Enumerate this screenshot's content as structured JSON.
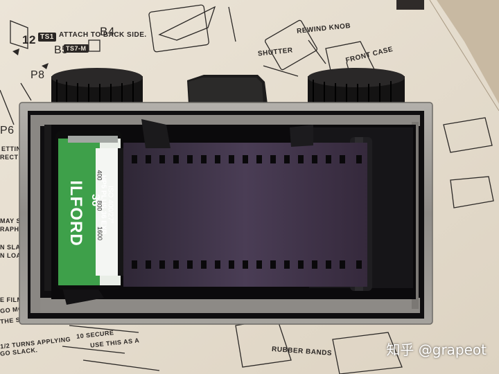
{
  "photo": {
    "subject": "Film camera kit with Ilford HP5 film loaded",
    "colors": {
      "paper": "#e9e1d3",
      "table": "#cfc2ad",
      "camera_silver": "#9d9a95",
      "camera_black": "#121113",
      "film": "#3c3245",
      "cartridge_green": "#3ea04a"
    }
  },
  "instructions": {
    "step_12": "12",
    "step_12_tag": "TS1",
    "step_12_text": "ATTACH TO BACK SIDE.",
    "part_b5": "B5",
    "part_b5_tag": "TS7-M",
    "part_b4": "B4",
    "part_p8": "P8",
    "part_p6": "P6",
    "label_shutter": "SHUTTER",
    "label_rewind_knob": "REWIND KNOB",
    "label_front_case": "FRONT CASE",
    "label_rubber_bands": "RUBBER BANDS",
    "left_snippets": [
      "ETTING W",
      "RECT SU",
      "MAY SC",
      "RAPHS.",
      "N SLACK",
      "N LOADI",
      "E FILM M",
      "GO MORE EASIL",
      "THE SLOT OF THE SPOOL",
      "1/2 TURNS APPLYING",
      "GO SLACK."
    ],
    "bottom_snippets": [
      "10  SECURE",
      "USE THIS AS A"
    ]
  },
  "film_cartridge": {
    "brand": "ILFORD",
    "exposures": "36",
    "product": "HP5 PLUS 36 EXP",
    "iso": "ISO 400/27°",
    "push_values": [
      "400",
      "800",
      "1600"
    ]
  },
  "watermark": "知乎 @grapeot"
}
